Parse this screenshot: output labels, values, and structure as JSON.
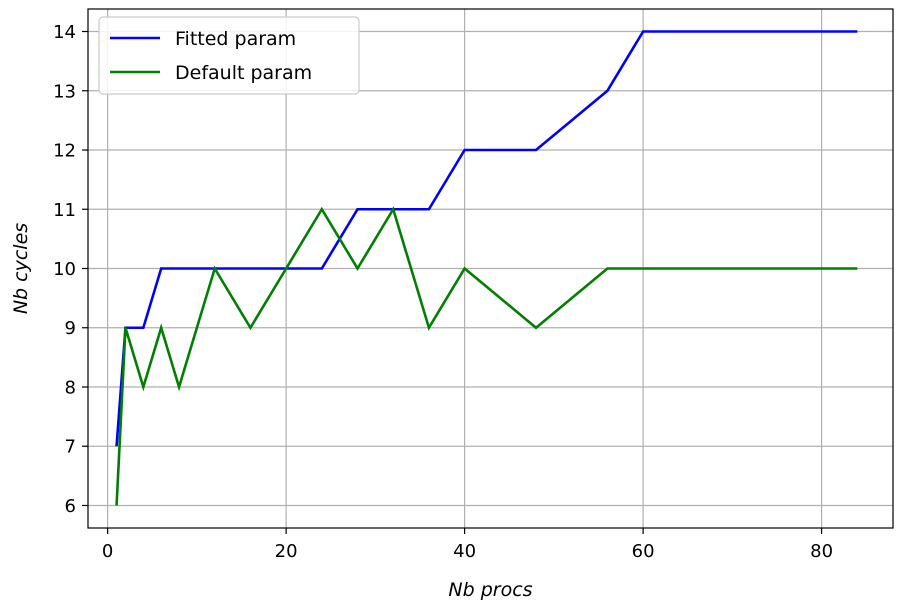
{
  "chart_data": {
    "type": "line",
    "xlabel": "Nb procs",
    "ylabel": "Nb cycles",
    "xlim": [
      -2.2,
      88
    ],
    "ylim": [
      5.62,
      14.38
    ],
    "xticks": [
      0,
      20,
      40,
      60,
      80
    ],
    "yticks": [
      6,
      7,
      8,
      9,
      10,
      11,
      12,
      13,
      14
    ],
    "grid": true,
    "legend_position": "top-left",
    "series": [
      {
        "name": "Fitted param",
        "color": "#0000ff",
        "x": [
          1,
          2,
          4,
          6,
          8,
          12,
          16,
          20,
          24,
          28,
          32,
          36,
          40,
          48,
          56,
          60,
          64,
          72,
          84
        ],
        "y": [
          7,
          9,
          9,
          10,
          10,
          10,
          10,
          10,
          10,
          11,
          11,
          11,
          12,
          12,
          13,
          14,
          14,
          14,
          14
        ]
      },
      {
        "name": "Default param",
        "color": "#008000",
        "x": [
          1,
          2,
          4,
          6,
          8,
          12,
          16,
          20,
          24,
          28,
          32,
          36,
          40,
          48,
          56,
          60,
          64,
          72,
          84
        ],
        "y": [
          6,
          9,
          8,
          9,
          8,
          10,
          9,
          10,
          11,
          10,
          11,
          9,
          10,
          9,
          10,
          10,
          10,
          10,
          10
        ]
      }
    ]
  }
}
